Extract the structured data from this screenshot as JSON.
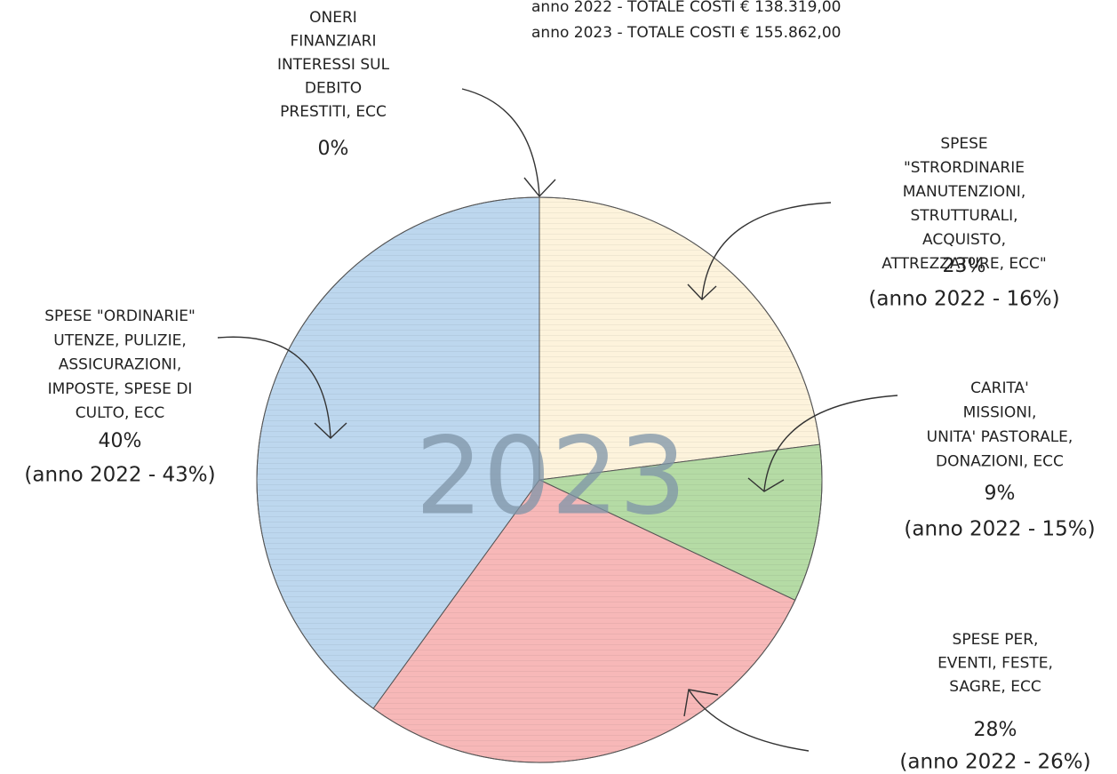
{
  "chart_data": {
    "type": "pie",
    "title_lines": [
      "anno 2022 - TOTALE COSTI  € 138.319,00",
      "anno 2023 - TOTALE COSTI  € 155.862,00"
    ],
    "center_label": "2023",
    "labels": [
      [
        "ONERI",
        "FINANZIARI",
        "INTERESSI SUL",
        "DEBITO",
        "PRESTITI, ECC"
      ],
      [
        "SPESE",
        "\"STRORDINARIE",
        "MANUTENZIONI,",
        "STRUTTURALI,",
        "ACQUISTO,",
        "ATTREZZATURE, ECC\""
      ],
      [
        "CARITA'",
        "MISSIONI,",
        "UNITA' PASTORALE,",
        "DONAZIONI, ECC"
      ],
      [
        "SPESE PER,",
        "EVENTI, FESTE,",
        "SAGRE, ECC"
      ],
      [
        "SPESE \"ORDINARIE\"",
        "UTENZE, PULIZIE,",
        "ASSICURAZIONI,",
        "IMPOSTE, SPESE DI",
        "CULTO, ECC"
      ]
    ],
    "values": [
      0,
      23,
      9,
      28,
      40
    ],
    "value_labels": [
      "0%",
      "23%",
      "9%",
      "28%",
      "40%"
    ],
    "notes": [
      null,
      "(anno 2022 - 16%)",
      "(anno 2022 - 15%)",
      "(anno 2022 - 26%)",
      "(anno 2022 - 43%)"
    ],
    "colors": [
      "#cccccc",
      "#fdf3dc",
      "#b5dba5",
      "#f7b8b8",
      "#bdd7ee"
    ]
  }
}
